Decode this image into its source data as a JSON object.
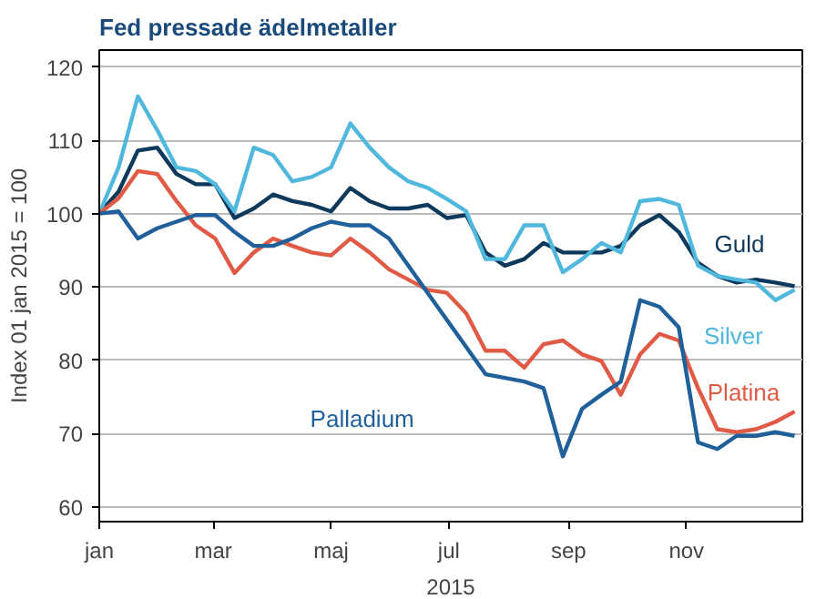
{
  "chart_data": {
    "type": "line",
    "title": "Fed pressade ädelmetaller",
    "xlabel": "2015",
    "ylabel": "Index 01 jan 2015 = 100",
    "x": [
      "2015-01-01",
      "2015-01-11",
      "2015-01-21",
      "2015-01-31",
      "2015-02-10",
      "2015-02-20",
      "2015-03-02",
      "2015-03-12",
      "2015-03-22",
      "2015-04-01",
      "2015-04-11",
      "2015-04-21",
      "2015-05-01",
      "2015-05-11",
      "2015-05-21",
      "2015-05-31",
      "2015-06-10",
      "2015-06-20",
      "2015-06-30",
      "2015-07-10",
      "2015-07-20",
      "2015-07-30",
      "2015-08-09",
      "2015-08-19",
      "2015-08-29",
      "2015-09-08",
      "2015-09-18",
      "2015-09-28",
      "2015-10-08",
      "2015-10-18",
      "2015-10-28",
      "2015-11-07",
      "2015-11-17",
      "2015-11-27",
      "2015-12-07",
      "2015-12-17",
      "2015-12-27"
    ],
    "series": [
      {
        "name": "Guld",
        "color": "#0d3a5c",
        "values": [
          100,
          103,
          108.6,
          109,
          105.4,
          104,
          104,
          99.4,
          100.7,
          102.6,
          101.7,
          101.2,
          100.3,
          103.5,
          101.7,
          100.7,
          100.7,
          101.2,
          99.4,
          99.8,
          94.7,
          92.9,
          93.8,
          96,
          94.7,
          94.7,
          94.7,
          95.6,
          98.4,
          99.8,
          97.5,
          93.3,
          91.5,
          90.6,
          91,
          90.6,
          90.1
        ]
      },
      {
        "name": "Silver",
        "color": "#4fb8dc",
        "values": [
          100,
          106.3,
          116,
          111.4,
          106.3,
          105.8,
          104,
          100.3,
          109,
          108,
          104.4,
          105,
          106.3,
          112.3,
          109,
          106.3,
          104.4,
          103.5,
          102,
          100.3,
          93.8,
          93.8,
          98.4,
          98.4,
          92,
          93.8,
          96,
          94.7,
          101.7,
          102,
          101.2,
          92.9,
          91.5,
          91,
          90.6,
          88.2,
          89.6
        ]
      },
      {
        "name": "Platina",
        "color": "#e05a46",
        "values": [
          100,
          102.1,
          105.8,
          105.4,
          101.7,
          98.4,
          96.6,
          91.9,
          94.7,
          96.6,
          95.6,
          94.7,
          94.3,
          96.6,
          94.7,
          92.4,
          91,
          89.6,
          89.2,
          86.4,
          81.3,
          81.3,
          79,
          82.2,
          82.7,
          80.8,
          79.9,
          75.3,
          80.8,
          83.6,
          82.7,
          76.2,
          70.6,
          70.2,
          70.6,
          71.6,
          73
        ]
      },
      {
        "name": "Palladium",
        "color": "#1f5f9a",
        "values": [
          100,
          100.3,
          96.6,
          98,
          98.9,
          99.8,
          99.8,
          97.5,
          95.6,
          95.6,
          96.6,
          98,
          98.9,
          98.4,
          98.4,
          96.6,
          92.9,
          89.2,
          85.5,
          81.8,
          78.1,
          77.6,
          77.1,
          76.2,
          66.9,
          73.4,
          75.3,
          77.1,
          88.2,
          87.3,
          84.5,
          68.8,
          67.9,
          69.7,
          69.7,
          70.2,
          69.7
        ]
      }
    ],
    "xlim": [
      "2015-01-01",
      "2015-12-31"
    ],
    "xticks": [
      {
        "value": "2015-01-01",
        "label": "jan"
      },
      {
        "value": "2015-03-01",
        "label": "mar"
      },
      {
        "value": "2015-05-01",
        "label": "maj"
      },
      {
        "value": "2015-07-01",
        "label": "jul"
      },
      {
        "value": "2015-09-01",
        "label": "sep"
      },
      {
        "value": "2015-11-01",
        "label": "nov"
      }
    ],
    "ylim": [
      58,
      122.3
    ],
    "yticks": [
      60,
      70,
      80,
      90,
      100,
      110,
      120
    ],
    "grid": "y",
    "marker": "none",
    "line_style": "solid"
  }
}
